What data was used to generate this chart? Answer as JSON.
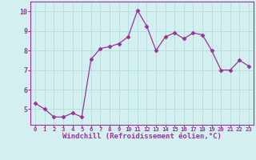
{
  "x": [
    0,
    1,
    2,
    3,
    4,
    5,
    6,
    7,
    8,
    9,
    10,
    11,
    12,
    13,
    14,
    15,
    16,
    17,
    18,
    19,
    20,
    21,
    22,
    23
  ],
  "y": [
    5.3,
    5.0,
    4.6,
    4.6,
    4.8,
    4.6,
    7.55,
    8.1,
    8.2,
    8.35,
    8.7,
    10.05,
    9.25,
    8.0,
    8.7,
    8.9,
    8.6,
    8.9,
    8.8,
    8.0,
    7.0,
    7.0,
    7.5,
    7.2
  ],
  "line_color": "#993399",
  "marker": "D",
  "markersize": 2.5,
  "linewidth": 0.9,
  "bg_color": "#d4eff0",
  "grid_color": "#b8dfe0",
  "xlabel": "Windchill (Refroidissement éolien,°C)",
  "xlabel_color": "#993399",
  "xlabel_fontsize": 6.5,
  "tick_color": "#993399",
  "tick_fontsize": 6,
  "ylim": [
    4.2,
    10.5
  ],
  "xlim": [
    -0.5,
    23.5
  ],
  "yticks": [
    5,
    6,
    7,
    8,
    9,
    10
  ],
  "xticks": [
    0,
    1,
    2,
    3,
    4,
    5,
    6,
    7,
    8,
    9,
    10,
    11,
    12,
    13,
    14,
    15,
    16,
    17,
    18,
    19,
    20,
    21,
    22,
    23
  ]
}
